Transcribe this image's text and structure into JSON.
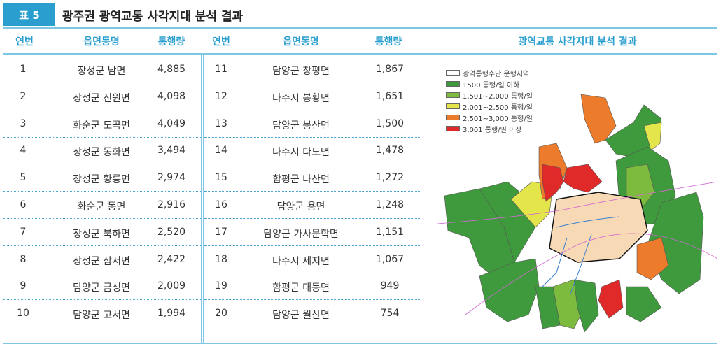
{
  "header": {
    "badge": "표 5",
    "title": "광주권 광역교통 사각지대 분석 결과"
  },
  "table": {
    "columns": [
      "연번",
      "읍면동명",
      "통행량",
      "연번",
      "읍면동명",
      "통행량"
    ],
    "map_header": "광역교통 사각지대 분석 결과",
    "left_rows": [
      {
        "no": "1",
        "name": "장성군 남면",
        "volume": "4,885"
      },
      {
        "no": "2",
        "name": "장성군 진원면",
        "volume": "4,098"
      },
      {
        "no": "3",
        "name": "화순군 도곡면",
        "volume": "4,049"
      },
      {
        "no": "4",
        "name": "장성군 동화면",
        "volume": "3,494"
      },
      {
        "no": "5",
        "name": "장성군 황룡면",
        "volume": "2,974"
      },
      {
        "no": "6",
        "name": "화순군 동면",
        "volume": "2,916"
      },
      {
        "no": "7",
        "name": "장성군 북하면",
        "volume": "2,520"
      },
      {
        "no": "8",
        "name": "장성군 삼서면",
        "volume": "2,422"
      },
      {
        "no": "9",
        "name": "담양군 금성면",
        "volume": "2,009"
      },
      {
        "no": "10",
        "name": "담양군 고서면",
        "volume": "1,994"
      }
    ],
    "right_rows": [
      {
        "no": "11",
        "name": "담양군 창평면",
        "volume": "1,867"
      },
      {
        "no": "12",
        "name": "나주시 봉황면",
        "volume": "1,651"
      },
      {
        "no": "13",
        "name": "담양군 봉산면",
        "volume": "1,500"
      },
      {
        "no": "14",
        "name": "나주시 다도면",
        "volume": "1,478"
      },
      {
        "no": "15",
        "name": "함평군 나산면",
        "volume": "1,272"
      },
      {
        "no": "16",
        "name": "담양군 용면",
        "volume": "1,248"
      },
      {
        "no": "17",
        "name": "담양군 가사문학면",
        "volume": "1,151"
      },
      {
        "no": "18",
        "name": "나주시 세지면",
        "volume": "1,067"
      },
      {
        "no": "19",
        "name": "함평군 대동면",
        "volume": "949"
      },
      {
        "no": "20",
        "name": "담양군 월산면",
        "volume": "754"
      }
    ]
  },
  "legend": [
    {
      "label": "광역통행수단 운행지역",
      "color": "#ffffff"
    },
    {
      "label": "1500 통행/일 이하",
      "color": "#3f9a3d"
    },
    {
      "label": "1,501~2,000 통행/일",
      "color": "#7dbb3f"
    },
    {
      "label": "2,001~2,500 통행/일",
      "color": "#e3e54a"
    },
    {
      "label": "2,501~3,000 통행/일",
      "color": "#ec7b2c"
    },
    {
      "label": "3,001 통행/일 이상",
      "color": "#e02a2a"
    }
  ],
  "colors": {
    "accent": "#2a9fcf",
    "rule": "#7ec7e2",
    "city": "#f7d9b5"
  }
}
